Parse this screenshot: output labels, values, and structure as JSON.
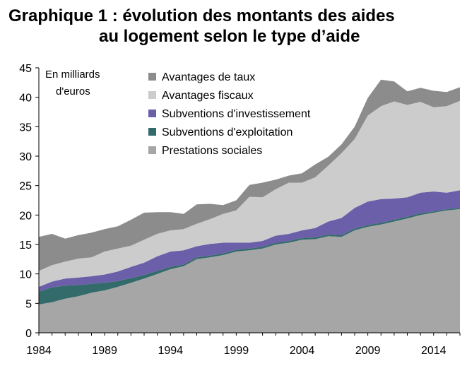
{
  "chart_data": {
    "type": "area",
    "stacked": true,
    "title": "Graphique 1 : évolution des montants des aides au logement selon le type d’aide",
    "title_lines": [
      "Graphique 1 : évolution des montants des aides",
      "au logement selon le type d’aide"
    ],
    "unit_label_lines": [
      "En milliards",
      "d'euros"
    ],
    "xlabel": "",
    "ylabel": "",
    "xlim": [
      1984,
      2016
    ],
    "ylim": [
      0,
      45
    ],
    "x_ticks": [
      1984,
      1989,
      1994,
      1999,
      2004,
      2009,
      2014
    ],
    "y_ticks": [
      0,
      5,
      10,
      15,
      20,
      25,
      30,
      35,
      40,
      45
    ],
    "grid": false,
    "legend_position": "top-right",
    "x": [
      1984,
      1985,
      1986,
      1987,
      1988,
      1989,
      1990,
      1991,
      1992,
      1993,
      1994,
      1995,
      1996,
      1997,
      1998,
      1999,
      2000,
      2001,
      2002,
      2003,
      2004,
      2005,
      2006,
      2007,
      2008,
      2009,
      2010,
      2011,
      2012,
      2013,
      2014,
      2015,
      2016
    ],
    "series": [
      {
        "name": "Prestations sociales",
        "color": "#a6a6a6",
        "values": [
          4.8,
          5.2,
          5.8,
          6.2,
          6.8,
          7.2,
          7.8,
          8.5,
          9.2,
          10.0,
          10.8,
          11.3,
          12.5,
          12.8,
          13.2,
          13.8,
          14.0,
          14.3,
          15.0,
          15.3,
          15.8,
          15.9,
          16.4,
          16.3,
          17.4,
          18.0,
          18.4,
          18.9,
          19.4,
          20.0,
          20.4,
          20.8,
          21.0
        ]
      },
      {
        "name": "Subventions d'exploitation",
        "color": "#336a6a",
        "values": [
          2.2,
          2.5,
          2.2,
          1.9,
          1.5,
          1.3,
          1.0,
          0.8,
          0.6,
          0.5,
          0.4,
          0.3,
          0.3,
          0.3,
          0.3,
          0.3,
          0.3,
          0.3,
          0.3,
          0.3,
          0.3,
          0.3,
          0.3,
          0.3,
          0.3,
          0.3,
          0.3,
          0.3,
          0.3,
          0.3,
          0.2,
          0.2,
          0.2
        ]
      },
      {
        "name": "Subventions d'investissement",
        "color": "#6a5fa8",
        "values": [
          0.8,
          1.0,
          1.2,
          1.3,
          1.3,
          1.4,
          1.6,
          1.9,
          2.1,
          2.5,
          2.6,
          2.4,
          1.9,
          2.0,
          1.8,
          1.2,
          1.0,
          1.0,
          1.2,
          1.2,
          1.3,
          1.6,
          2.2,
          2.9,
          3.5,
          4.0,
          4.0,
          3.6,
          3.3,
          3.5,
          3.4,
          2.8,
          3.0
        ]
      },
      {
        "name": "Avantages fiscaux",
        "color": "#cccccc",
        "values": [
          2.7,
          2.8,
          2.9,
          3.2,
          3.2,
          3.9,
          3.9,
          3.6,
          3.9,
          3.8,
          3.6,
          3.6,
          3.8,
          4.2,
          4.9,
          5.5,
          7.8,
          7.4,
          7.9,
          8.7,
          8.1,
          8.6,
          9.5,
          11.0,
          11.7,
          14.6,
          15.8,
          16.5,
          15.7,
          15.4,
          14.3,
          14.7,
          15.2
        ]
      },
      {
        "name": "Avantages de taux",
        "color": "#8c8c8c",
        "values": [
          5.8,
          5.3,
          3.9,
          4.0,
          4.2,
          3.8,
          3.8,
          4.4,
          4.6,
          3.7,
          3.1,
          2.6,
          3.3,
          2.6,
          1.5,
          1.7,
          2.0,
          2.5,
          1.6,
          1.2,
          1.6,
          2.2,
          1.5,
          1.5,
          2.1,
          3.0,
          4.5,
          3.4,
          2.3,
          2.4,
          2.8,
          2.4,
          2.3
        ]
      }
    ]
  }
}
